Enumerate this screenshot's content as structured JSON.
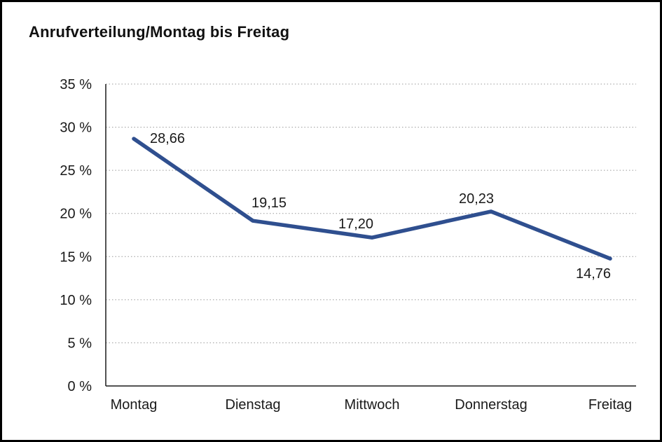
{
  "chart_data": {
    "type": "line",
    "title": "Anrufverteilung/Montag bis Freitag",
    "categories": [
      "Montag",
      "Dienstag",
      "Mittwoch",
      "Donnerstag",
      "Freitag"
    ],
    "series": [
      {
        "name": "Anrufverteilung",
        "values": [
          28.66,
          19.15,
          17.2,
          20.23,
          14.76
        ]
      }
    ],
    "data_labels": [
      "28,66",
      "19,15",
      "17,20",
      "20,23",
      "14,76"
    ],
    "xlabel": "",
    "ylabel": "",
    "ylim": [
      0,
      35
    ],
    "ytick_step": 5,
    "ytick_labels": [
      "0 %",
      "5 %",
      "10 %",
      "15 %",
      "20 %",
      "25 %",
      "30 %",
      "35 %"
    ],
    "grid": "horizontal-dotted",
    "legend": "none",
    "line_color": "#2F4F8F",
    "axis_color": "#1a1a1a",
    "grid_color": "#999999",
    "text_color": "#1a1a1a"
  }
}
